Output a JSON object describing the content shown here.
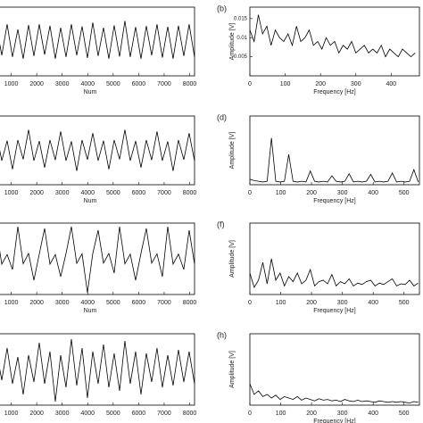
{
  "chart_data": [
    {
      "type": "line",
      "xlabel": "Num",
      "x": [
        0,
        210,
        420,
        630,
        840,
        1050,
        1260,
        1470,
        1680,
        1890,
        2100,
        2310,
        2520,
        2730,
        2940,
        3150,
        3360,
        3570,
        3780,
        3990,
        4200,
        4410,
        4620,
        4830,
        5040,
        5250,
        5460,
        5670,
        5880,
        6090,
        6300,
        6510,
        6720,
        6930,
        7140,
        7350,
        7560,
        7770,
        7980,
        8190
      ],
      "values": [
        0.4,
        -0.5,
        0.45,
        -0.4,
        0.5,
        -0.45,
        0.35,
        -0.5,
        0.48,
        -0.42,
        0.5,
        -0.38,
        0.46,
        -0.5,
        0.4,
        -0.45,
        0.5,
        -0.4,
        0.44,
        -0.48,
        0.55,
        -0.42,
        0.4,
        -0.5,
        0.47,
        -0.44,
        0.6,
        -0.45,
        0.42,
        -0.5,
        0.45,
        -0.4,
        0.5,
        -0.47,
        0.43,
        -0.5,
        0.46,
        -0.42,
        0.5,
        -0.45
      ],
      "xlim": [
        0,
        8192
      ],
      "ylim": [
        -1,
        1
      ],
      "xticks": [
        1000,
        2000,
        3000,
        4000,
        5000,
        6000,
        7000,
        8000
      ],
      "color": "#000000"
    },
    {
      "type": "line",
      "label": "(b)",
      "xlabel": "Frequency [Hz]",
      "ylabel": "Amplitude [V]",
      "x": [
        0,
        12,
        24,
        36,
        48,
        60,
        72,
        84,
        96,
        108,
        120,
        132,
        144,
        156,
        168,
        180,
        192,
        204,
        216,
        228,
        240,
        252,
        264,
        276,
        288,
        300,
        312,
        324,
        336,
        348,
        360,
        372,
        384,
        396,
        408,
        420,
        432,
        444,
        456,
        468
      ],
      "values": [
        0.012,
        0.009,
        0.016,
        0.011,
        0.013,
        0.008,
        0.012,
        0.01,
        0.009,
        0.011,
        0.008,
        0.013,
        0.009,
        0.01,
        0.012,
        0.008,
        0.009,
        0.007,
        0.01,
        0.008,
        0.009,
        0.006,
        0.008,
        0.007,
        0.009,
        0.006,
        0.007,
        0.008,
        0.006,
        0.007,
        0.006,
        0.008,
        0.005,
        0.007,
        0.006,
        0.005,
        0.007,
        0.006,
        0.005,
        0.006
      ],
      "xlim": [
        0,
        480
      ],
      "ylim": [
        0,
        0.018
      ],
      "xticks": [
        0,
        100,
        200,
        300,
        400
      ],
      "yticks": [
        0.005,
        0.01,
        0.015
      ],
      "color": "#000000"
    },
    {
      "type": "line",
      "xlabel": "Num",
      "x": [
        0,
        210,
        420,
        630,
        840,
        1050,
        1260,
        1470,
        1680,
        1890,
        2100,
        2310,
        2520,
        2730,
        2940,
        3150,
        3360,
        3570,
        3780,
        3990,
        4200,
        4410,
        4620,
        4830,
        5040,
        5250,
        5460,
        5670,
        5880,
        6090,
        6300,
        6510,
        6720,
        6930,
        7140,
        7350,
        7560,
        7770,
        7980,
        8190
      ],
      "values": [
        0.3,
        -0.25,
        0.5,
        -0.3,
        0.28,
        -0.55,
        0.3,
        -0.26,
        0.6,
        -0.3,
        0.27,
        -0.5,
        0.3,
        -0.28,
        0.55,
        -0.3,
        0.26,
        -0.6,
        0.3,
        -0.27,
        0.5,
        -0.3,
        0.28,
        -0.55,
        0.3,
        -0.26,
        0.6,
        -0.3,
        0.27,
        -0.5,
        0.3,
        -0.28,
        0.55,
        -0.3,
        0.26,
        -0.6,
        0.3,
        -0.27,
        0.5,
        -0.3
      ],
      "xlim": [
        0,
        8192
      ],
      "ylim": [
        -1,
        1
      ],
      "xticks": [
        1000,
        2000,
        3000,
        4000,
        5000,
        6000,
        7000,
        8000
      ],
      "color": "#000000"
    },
    {
      "type": "line",
      "label": "(d)",
      "xlabel": "Frequency [Hz]",
      "ylabel": "Amplitude [V]",
      "x": [
        0,
        14,
        28,
        42,
        56,
        70,
        84,
        98,
        112,
        126,
        140,
        154,
        168,
        182,
        196,
        210,
        224,
        238,
        252,
        266,
        280,
        294,
        308,
        322,
        336,
        350,
        364,
        378,
        392,
        406,
        420,
        434,
        448,
        462,
        476,
        490,
        504,
        518,
        532,
        546
      ],
      "values": [
        0.08,
        0.06,
        0.05,
        0.04,
        0.05,
        0.68,
        0.05,
        0.04,
        0.05,
        0.44,
        0.05,
        0.04,
        0.05,
        0.04,
        0.2,
        0.05,
        0.04,
        0.05,
        0.04,
        0.13,
        0.05,
        0.04,
        0.05,
        0.16,
        0.04,
        0.05,
        0.04,
        0.05,
        0.15,
        0.04,
        0.05,
        0.04,
        0.05,
        0.17,
        0.04,
        0.05,
        0.04,
        0.05,
        0.22,
        0.04
      ],
      "xlim": [
        0,
        550
      ],
      "ylim": [
        0,
        1
      ],
      "xticks": [
        0,
        100,
        200,
        300,
        400,
        500
      ],
      "color": "#000000"
    },
    {
      "type": "line",
      "xlabel": "Num",
      "x": [
        0,
        210,
        420,
        630,
        840,
        1050,
        1260,
        1470,
        1680,
        1890,
        2100,
        2310,
        2520,
        2730,
        2940,
        3150,
        3360,
        3570,
        3780,
        3990,
        4200,
        4410,
        4620,
        4830,
        5040,
        5250,
        5460,
        5670,
        5880,
        6090,
        6300,
        6510,
        6720,
        6930,
        7140,
        7350,
        7560,
        7770,
        7980,
        8190
      ],
      "values": [
        0.15,
        -0.12,
        0.8,
        -0.15,
        0.12,
        -0.3,
        0.9,
        -0.14,
        0.15,
        -0.6,
        0.13,
        0.85,
        -0.15,
        0.12,
        -0.5,
        0.15,
        0.9,
        -0.13,
        0.14,
        -0.95,
        0.15,
        0.8,
        -0.12,
        0.15,
        -0.4,
        0.9,
        -0.14,
        0.13,
        -0.6,
        0.15,
        0.85,
        -0.12,
        0.14,
        -0.5,
        0.9,
        -0.15,
        0.13,
        -0.3,
        0.8,
        -0.14
      ],
      "xlim": [
        0,
        8192
      ],
      "ylim": [
        -1,
        1
      ],
      "xticks": [
        1000,
        2000,
        3000,
        4000,
        5000,
        6000,
        7000,
        8000
      ],
      "color": "#000000"
    },
    {
      "type": "line",
      "label": "(f)",
      "xlabel": "Frequency [Hz]",
      "ylabel": "Amplitude [V]",
      "x": [
        0,
        14,
        28,
        42,
        56,
        70,
        84,
        98,
        112,
        126,
        140,
        154,
        168,
        182,
        196,
        210,
        224,
        238,
        252,
        266,
        280,
        294,
        308,
        322,
        336,
        350,
        364,
        378,
        392,
        406,
        420,
        434,
        448,
        462,
        476,
        490,
        504,
        518,
        532,
        546
      ],
      "values": [
        0.3,
        0.1,
        0.2,
        0.45,
        0.15,
        0.5,
        0.2,
        0.3,
        0.12,
        0.25,
        0.18,
        0.3,
        0.15,
        0.2,
        0.35,
        0.12,
        0.18,
        0.2,
        0.15,
        0.28,
        0.12,
        0.18,
        0.15,
        0.22,
        0.12,
        0.16,
        0.14,
        0.18,
        0.2,
        0.12,
        0.16,
        0.14,
        0.18,
        0.22,
        0.12,
        0.15,
        0.14,
        0.2,
        0.12,
        0.16
      ],
      "xlim": [
        0,
        550
      ],
      "ylim": [
        0,
        1
      ],
      "xticks": [
        0,
        100,
        200,
        300,
        400,
        500
      ],
      "color": "#000000"
    },
    {
      "type": "line",
      "x": [
        0,
        210,
        420,
        630,
        840,
        1050,
        1260,
        1470,
        1680,
        1890,
        2100,
        2310,
        2520,
        2730,
        2940,
        3150,
        3360,
        3570,
        3780,
        3990,
        4200,
        4410,
        4620,
        4830,
        5040,
        5250,
        5460,
        5670,
        5880,
        6090,
        6300,
        6510,
        6720,
        6930,
        7140,
        7350,
        7560,
        7770,
        7980,
        8190
      ],
      "values": [
        0.3,
        -0.35,
        0.5,
        -0.3,
        0.6,
        -0.4,
        0.35,
        -0.7,
        0.4,
        -0.35,
        0.75,
        -0.4,
        0.5,
        -0.9,
        0.4,
        -0.5,
        0.85,
        -0.45,
        0.6,
        -0.8,
        0.5,
        -0.4,
        0.7,
        -0.5,
        0.45,
        -0.6,
        0.8,
        -0.4,
        0.5,
        -0.7,
        0.45,
        -0.35,
        0.6,
        -0.5,
        0.4,
        -0.45,
        0.55,
        -0.35,
        0.5,
        -0.4
      ],
      "xlim": [
        0,
        8192
      ],
      "ylim": [
        -1,
        1
      ],
      "xticks": [
        1000,
        2000,
        3000,
        4000,
        5000,
        6000,
        7000,
        8000
      ],
      "color": "#000000"
    },
    {
      "type": "line",
      "label": "(h)",
      "xlabel": "Frequency [Hz]",
      "ylabel": "Amplitude [V]",
      "x": [
        0,
        14,
        28,
        42,
        56,
        70,
        84,
        98,
        112,
        126,
        140,
        154,
        168,
        182,
        196,
        210,
        224,
        238,
        252,
        266,
        280,
        294,
        308,
        322,
        336,
        350,
        364,
        378,
        392,
        406,
        420,
        434,
        448,
        462,
        476,
        490,
        504,
        518,
        532,
        546
      ],
      "values": [
        0.3,
        0.15,
        0.2,
        0.12,
        0.15,
        0.1,
        0.14,
        0.08,
        0.12,
        0.1,
        0.08,
        0.12,
        0.07,
        0.1,
        0.08,
        0.06,
        0.09,
        0.07,
        0.08,
        0.06,
        0.07,
        0.05,
        0.08,
        0.06,
        0.05,
        0.07,
        0.05,
        0.06,
        0.05,
        0.04,
        0.06,
        0.05,
        0.04,
        0.05,
        0.04,
        0.05,
        0.04,
        0.03,
        0.05,
        0.04
      ],
      "xlim": [
        0,
        550
      ],
      "ylim": [
        0,
        1
      ],
      "xticks": [
        0,
        100,
        200,
        300,
        400,
        500
      ],
      "color": "#000000"
    }
  ]
}
